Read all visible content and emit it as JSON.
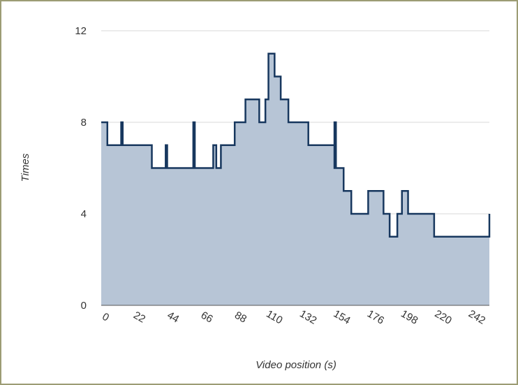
{
  "chart_data": {
    "type": "area",
    "step": true,
    "title": "",
    "xlabel": "Video position (s)",
    "ylabel": "Times",
    "xlim": [
      0,
      253
    ],
    "ylim": [
      0,
      12
    ],
    "x_ticks": [
      0,
      22,
      44,
      66,
      88,
      110,
      132,
      154,
      176,
      198,
      220,
      242
    ],
    "y_ticks": [
      0,
      4,
      8,
      12
    ],
    "grid": true,
    "legend": "none",
    "colors": {
      "fill": "#b7c5d6",
      "line": "#17375e",
      "grid": "#d9d9d9",
      "baseline": "#555555",
      "border": "#9c9c74"
    },
    "series": [
      {
        "x": [
          0,
          4,
          13,
          14,
          33,
          36,
          42,
          43,
          60,
          61,
          73,
          75,
          78,
          80,
          87,
          94,
          103,
          107,
          109,
          111,
          113,
          117,
          122,
          135,
          152,
          153,
          152,
          154,
          155,
          158,
          163,
          174,
          184,
          188,
          193,
          196,
          200,
          217,
          253
        ],
        "y": [
          8,
          7,
          8,
          7,
          6,
          6,
          7,
          6,
          8,
          6,
          7,
          6,
          7,
          7,
          8,
          9,
          8,
          9,
          11,
          11,
          10,
          9,
          8,
          7,
          6,
          8,
          6,
          6,
          6,
          5,
          4,
          5,
          4,
          3,
          4,
          5,
          4,
          3,
          4
        ]
      }
    ]
  }
}
